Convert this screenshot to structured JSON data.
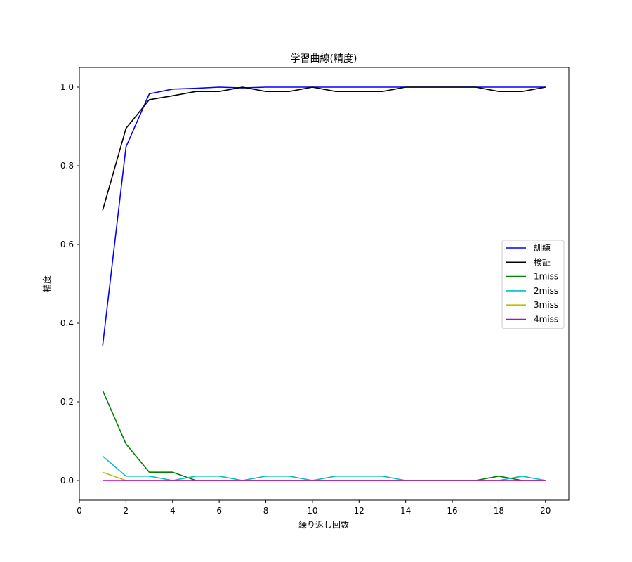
{
  "chart_data": {
    "type": "line",
    "title": "学習曲線(精度)",
    "xlabel": "繰り返し回数",
    "ylabel": "精度",
    "xlim": [
      0,
      21
    ],
    "ylim": [
      -0.05,
      1.05
    ],
    "xticks": [
      0,
      2,
      4,
      6,
      8,
      10,
      12,
      14,
      16,
      18,
      20
    ],
    "yticks": [
      0.0,
      0.2,
      0.4,
      0.6,
      0.8,
      1.0
    ],
    "ytick_labels": [
      "0.0",
      "0.2",
      "0.4",
      "0.6",
      "0.8",
      "1.0"
    ],
    "grid": false,
    "legend_position": "center-right",
    "x": [
      1,
      2,
      3,
      4,
      5,
      6,
      7,
      8,
      9,
      10,
      11,
      12,
      13,
      14,
      15,
      16,
      17,
      18,
      19,
      20
    ],
    "series": [
      {
        "name": "訓練",
        "color": "#0000ff",
        "values": [
          0.343,
          0.848,
          0.983,
          0.995,
          0.997,
          1.0,
          0.998,
          1.0,
          1.0,
          1.0,
          1.0,
          1.0,
          1.0,
          1.0,
          1.0,
          1.0,
          1.0,
          1.0,
          1.0,
          1.0
        ]
      },
      {
        "name": "検証",
        "color": "#000000",
        "values": [
          0.687,
          0.895,
          0.968,
          0.978,
          0.989,
          0.989,
          1.0,
          0.989,
          0.989,
          1.0,
          0.989,
          0.989,
          0.989,
          1.0,
          1.0,
          1.0,
          1.0,
          0.989,
          0.989,
          1.0
        ]
      },
      {
        "name": "1miss",
        "color": "#008000",
        "values": [
          0.229,
          0.093,
          0.021,
          0.021,
          0.0,
          0.0,
          0.0,
          0.0,
          0.0,
          0.0,
          0.0,
          0.0,
          0.0,
          0.0,
          0.0,
          0.0,
          0.0,
          0.011,
          0.0,
          0.0
        ]
      },
      {
        "name": "2miss",
        "color": "#00bfbf",
        "values": [
          0.062,
          0.011,
          0.011,
          0.0,
          0.011,
          0.011,
          0.0,
          0.011,
          0.011,
          0.0,
          0.011,
          0.011,
          0.011,
          0.0,
          0.0,
          0.0,
          0.0,
          0.0,
          0.011,
          0.0
        ]
      },
      {
        "name": "3miss",
        "color": "#bfbf00",
        "values": [
          0.021,
          0.0,
          0.0,
          0.0,
          0.0,
          0.0,
          0.0,
          0.0,
          0.0,
          0.0,
          0.0,
          0.0,
          0.0,
          0.0,
          0.0,
          0.0,
          0.0,
          0.0,
          0.0,
          0.0
        ]
      },
      {
        "name": "4miss",
        "color": "#bf00bf",
        "values": [
          0.0,
          0.0,
          0.0,
          0.0,
          0.0,
          0.0,
          0.0,
          0.0,
          0.0,
          0.0,
          0.0,
          0.0,
          0.0,
          0.0,
          0.0,
          0.0,
          0.0,
          0.0,
          0.0,
          0.0
        ]
      }
    ]
  }
}
